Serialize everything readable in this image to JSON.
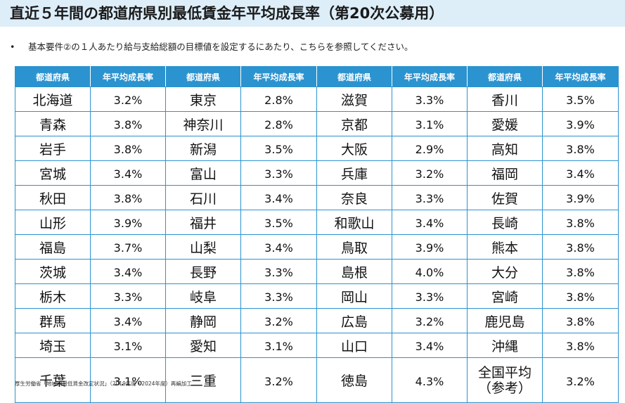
{
  "title": "直近５年間の都道府県別最低賃金年平均成長率（第20次公募用）",
  "note": {
    "bullet": "•",
    "text": "基本要件②の１人あたり給与支給総額の目標値を設定するにあたり、こちらを参照してください。"
  },
  "table": {
    "headers": [
      "都道府県",
      "年平均成長率",
      "都道府県",
      "年平均成長率",
      "都道府県",
      "年平均成長率",
      "都道府県",
      "年平均成長率"
    ],
    "rows": [
      [
        [
          "北海道",
          "3.2%"
        ],
        [
          "東京",
          "2.8%"
        ],
        [
          "滋賀",
          "3.3%"
        ],
        [
          "香川",
          "3.5%"
        ]
      ],
      [
        [
          "青森",
          "3.8%"
        ],
        [
          "神奈川",
          "2.8%"
        ],
        [
          "京都",
          "3.1%"
        ],
        [
          "愛媛",
          "3.9%"
        ]
      ],
      [
        [
          "岩手",
          "3.8%"
        ],
        [
          "新潟",
          "3.5%"
        ],
        [
          "大阪",
          "2.9%"
        ],
        [
          "高知",
          "3.8%"
        ]
      ],
      [
        [
          "宮城",
          "3.4%"
        ],
        [
          "富山",
          "3.3%"
        ],
        [
          "兵庫",
          "3.2%"
        ],
        [
          "福岡",
          "3.4%"
        ]
      ],
      [
        [
          "秋田",
          "3.8%"
        ],
        [
          "石川",
          "3.4%"
        ],
        [
          "奈良",
          "3.3%"
        ],
        [
          "佐賀",
          "3.9%"
        ]
      ],
      [
        [
          "山形",
          "3.9%"
        ],
        [
          "福井",
          "3.5%"
        ],
        [
          "和歌山",
          "3.4%"
        ],
        [
          "長崎",
          "3.8%"
        ]
      ],
      [
        [
          "福島",
          "3.7%"
        ],
        [
          "山梨",
          "3.4%"
        ],
        [
          "鳥取",
          "3.9%"
        ],
        [
          "熊本",
          "3.8%"
        ]
      ],
      [
        [
          "茨城",
          "3.4%"
        ],
        [
          "長野",
          "3.3%"
        ],
        [
          "島根",
          "4.0%"
        ],
        [
          "大分",
          "3.8%"
        ]
      ],
      [
        [
          "栃木",
          "3.3%"
        ],
        [
          "岐阜",
          "3.3%"
        ],
        [
          "岡山",
          "3.3%"
        ],
        [
          "宮崎",
          "3.8%"
        ]
      ],
      [
        [
          "群馬",
          "3.4%"
        ],
        [
          "静岡",
          "3.2%"
        ],
        [
          "広島",
          "3.2%"
        ],
        [
          "鹿児島",
          "3.8%"
        ]
      ],
      [
        [
          "埼玉",
          "3.1%"
        ],
        [
          "愛知",
          "3.1%"
        ],
        [
          "山口",
          "3.4%"
        ],
        [
          "沖縄",
          "3.8%"
        ]
      ]
    ],
    "last_row": {
      "cells": [
        [
          "千葉",
          "3.1%"
        ],
        [
          "三重",
          "3.2%"
        ],
        [
          "徳島",
          "4.3%"
        ]
      ],
      "national_line1": "全国平均",
      "national_line2": "（参考）",
      "national_rate": "3.2%"
    }
  },
  "source": "厚生労働省「地域別最低賃金改定状況」（2019年度・2024年度）再編加工",
  "colors": {
    "title_band": "#ddeef9",
    "header_fill": "#2b93cf",
    "grid_line": "#2b93cf"
  }
}
